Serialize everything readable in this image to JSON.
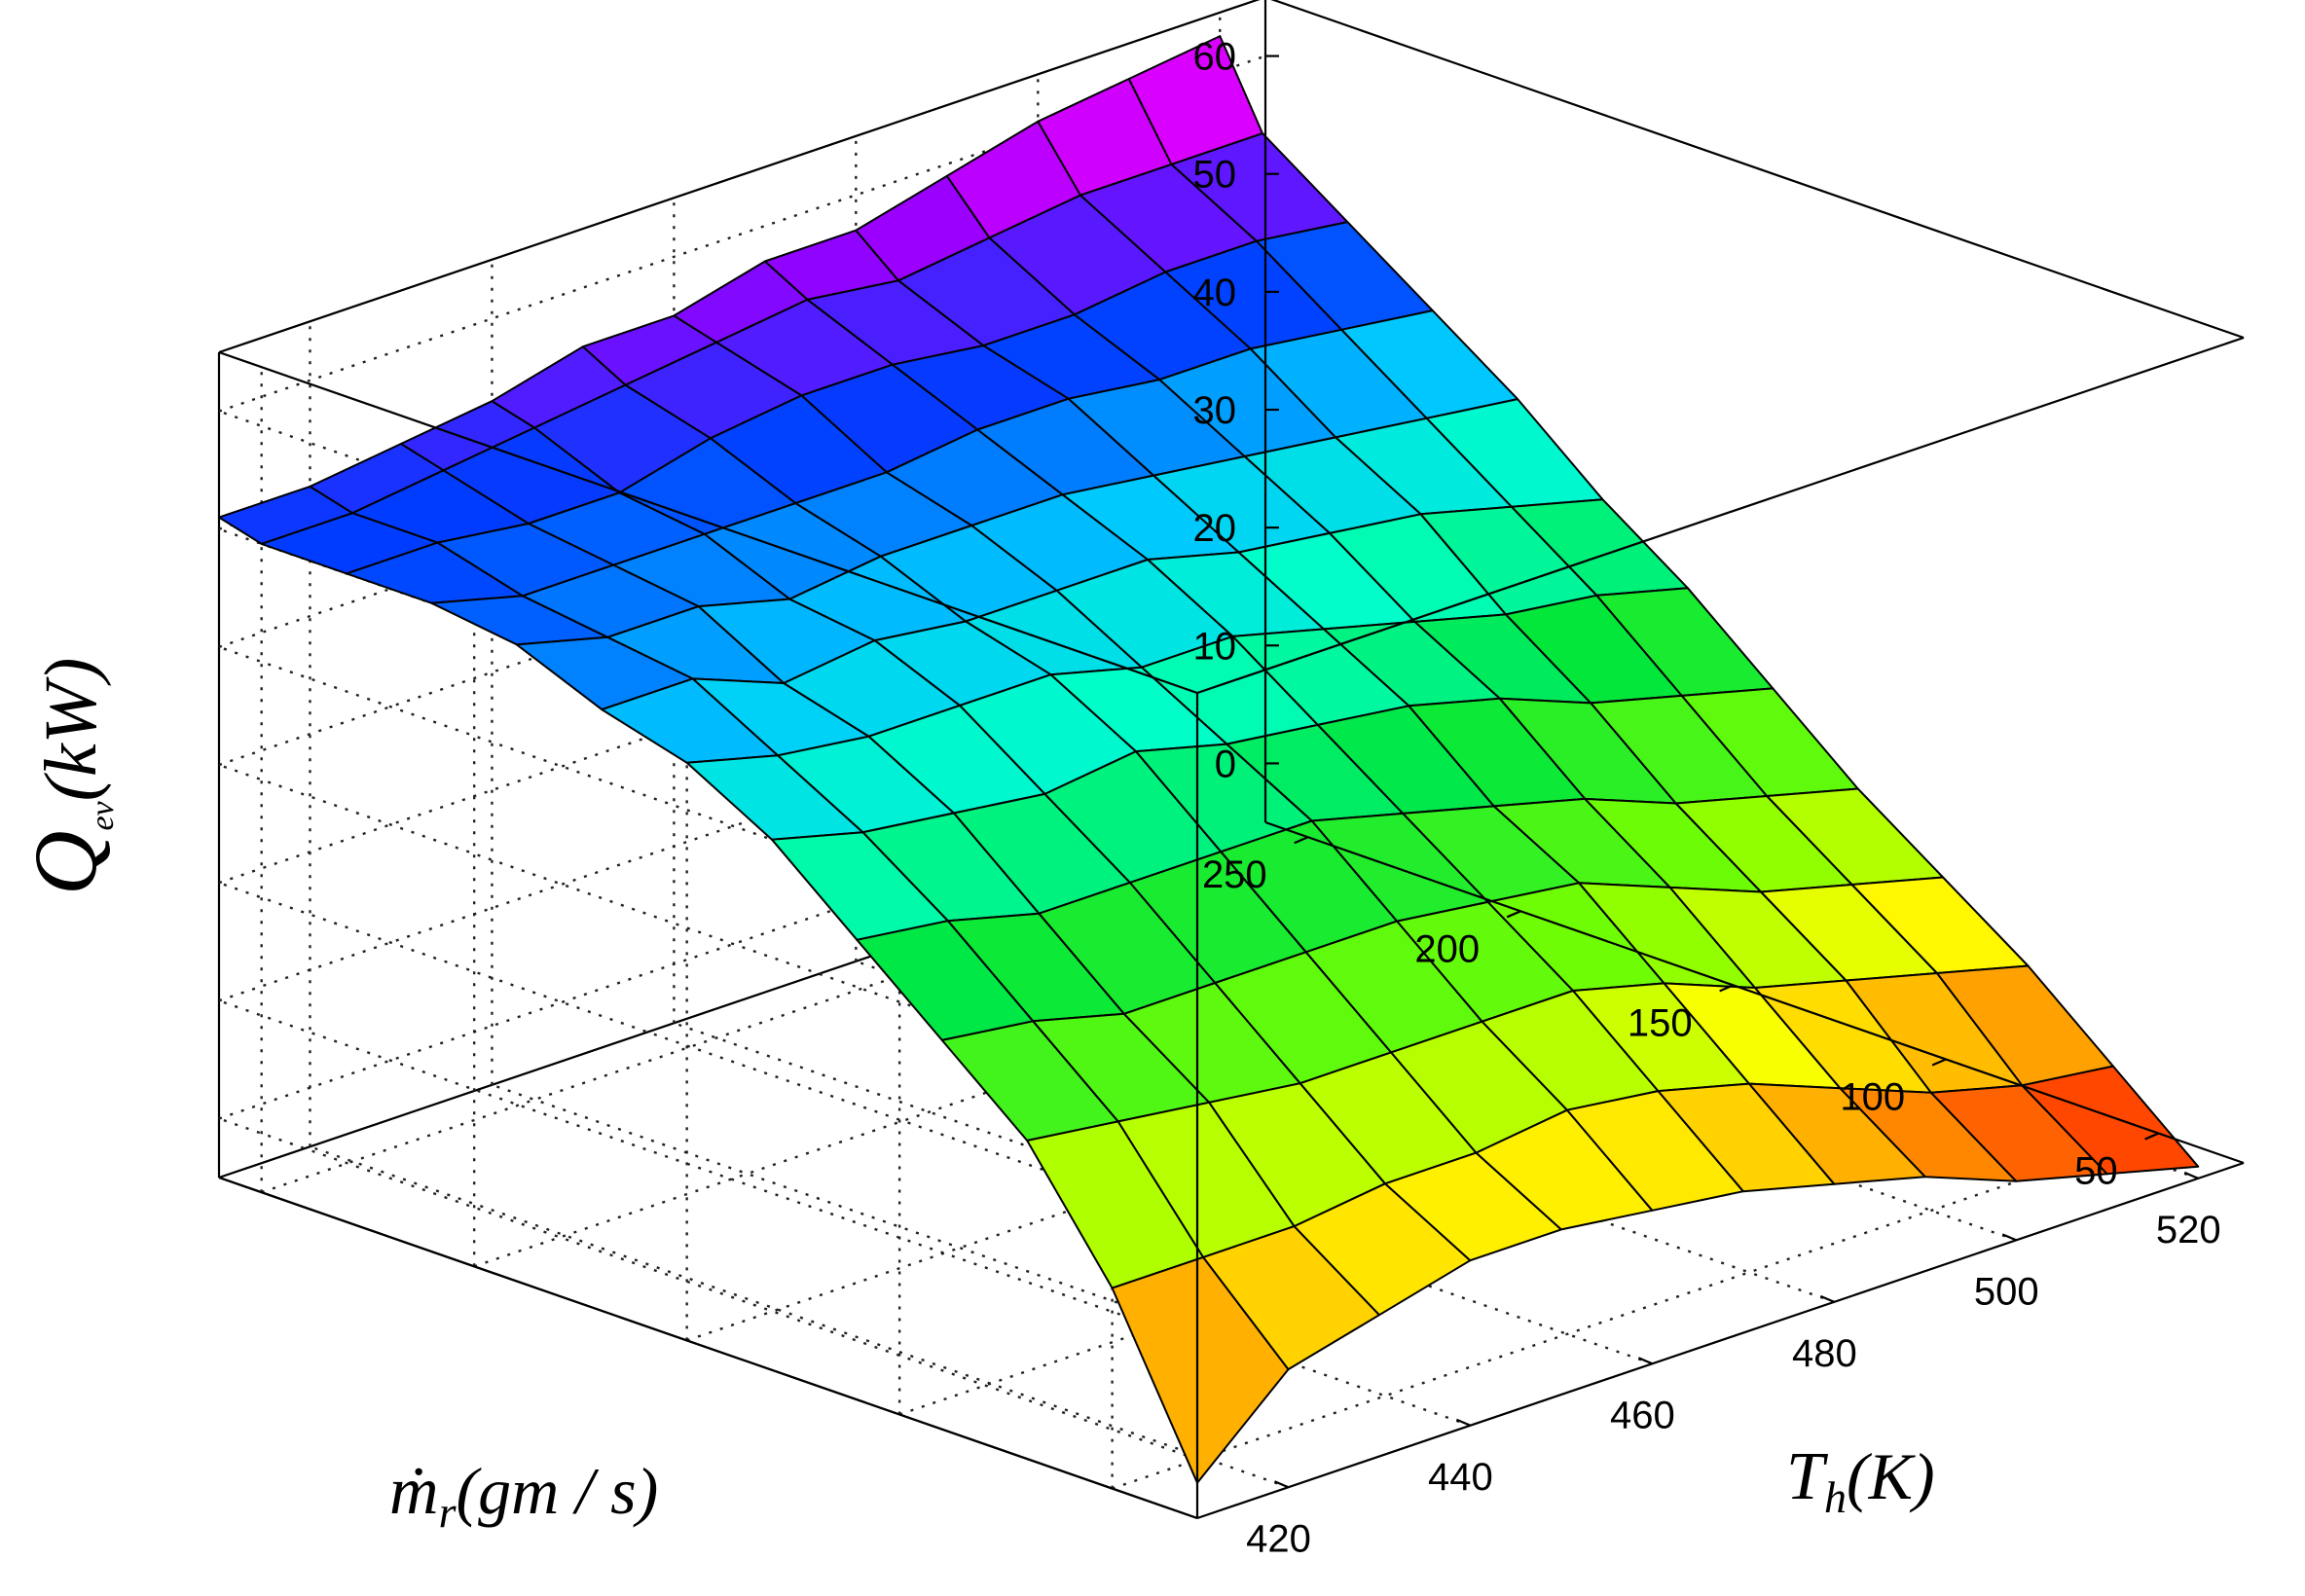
{
  "chart_data": {
    "type": "surface",
    "title": "",
    "axes": {
      "x": {
        "name": "T",
        "subscript": "h",
        "unit": "(K)",
        "ticks": [
          520,
          500,
          480,
          460,
          440,
          420
        ],
        "range": [
          410,
          525
        ]
      },
      "y": {
        "name": "ṁ",
        "subscript": "r",
        "unit": "(gm / s)",
        "ticks": [
          50,
          100,
          150,
          200,
          250
        ],
        "range": [
          30,
          260
        ]
      },
      "z": {
        "name": "Q",
        "subscript": "ev",
        "unit": "(kW)",
        "ticks": [
          0,
          10,
          20,
          30,
          40,
          50,
          60
        ],
        "range": [
          -5,
          65
        ]
      }
    },
    "grid": true,
    "colormap": "hsv",
    "th_values": [
      410,
      420,
      430,
      440,
      450,
      460,
      470,
      480,
      490,
      500,
      510,
      520
    ],
    "mr_values": [
      30,
      50,
      70,
      90,
      110,
      130,
      150,
      170,
      190,
      210,
      230,
      250,
      260
    ],
    "q_values": [
      [
        -2,
        12,
        22,
        28,
        34,
        40,
        44,
        46,
        49,
        50,
        50,
        50,
        51
      ],
      [
        5,
        12,
        21,
        27,
        33,
        38,
        42,
        46,
        47,
        48,
        50,
        50,
        51
      ],
      [
        7,
        12,
        20,
        25,
        31,
        37,
        41,
        43,
        47,
        48,
        49,
        51,
        52
      ],
      [
        9,
        13,
        19,
        25,
        31,
        36,
        41,
        44,
        45,
        48,
        49,
        52,
        53
      ],
      [
        9,
        13,
        19,
        25,
        31,
        37,
        41,
        43,
        46,
        48,
        51,
        53,
        55
      ],
      [
        8,
        14,
        19,
        25,
        31,
        35,
        39,
        43,
        46,
        48,
        52,
        54,
        55
      ],
      [
        7,
        13,
        19,
        24,
        29,
        34,
        39,
        43,
        46,
        49,
        52,
        55,
        57
      ],
      [
        5,
        11,
        17,
        23,
        27,
        33,
        37,
        41,
        45,
        49,
        51,
        54,
        57
      ],
      [
        3,
        8,
        14,
        20,
        25,
        31,
        35,
        40,
        44,
        48,
        51,
        55,
        59
      ],
      [
        0,
        5,
        12,
        17,
        22,
        28,
        33,
        39,
        43,
        48,
        52,
        56,
        61
      ],
      [
        -2,
        3,
        10,
        15,
        20,
        26,
        32,
        37,
        42,
        47,
        52,
        56,
        62
      ],
      [
        -4,
        2,
        8,
        13,
        18,
        24,
        30,
        35,
        41,
        46,
        51,
        56,
        63
      ]
    ]
  }
}
